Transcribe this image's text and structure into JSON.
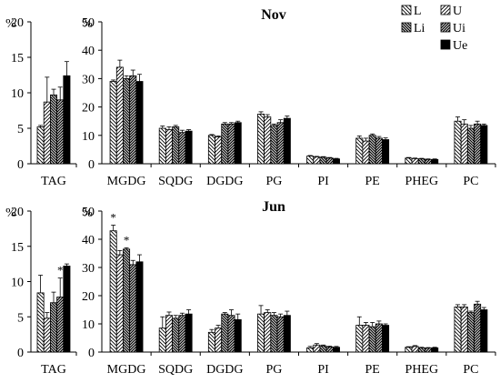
{
  "figure": {
    "legend": [
      {
        "label": "L",
        "pattern": "hatch-back"
      },
      {
        "label": "U",
        "pattern": "hatch-fwd"
      },
      {
        "label": "Li",
        "pattern": "hatch-back-dense"
      },
      {
        "label": "Ui",
        "pattern": "hatch-fwd-dense"
      },
      {
        "label": "Ue",
        "pattern": "solid-black"
      }
    ],
    "legend_placement": "top-right"
  },
  "chart_data": [
    {
      "type": "bar",
      "panel": "Nov-TAG",
      "title": "",
      "ylabel": "%",
      "ylim": [
        0,
        20
      ],
      "yticks": [
        0,
        5,
        10,
        15,
        20
      ],
      "categories": [
        "TAG"
      ],
      "series": [
        {
          "name": "L",
          "values": [
            5.2
          ],
          "errors": [
            0.2
          ]
        },
        {
          "name": "U",
          "values": [
            8.7
          ],
          "errors": [
            3.5
          ]
        },
        {
          "name": "Li",
          "values": [
            9.7
          ],
          "errors": [
            0.8
          ]
        },
        {
          "name": "Ui",
          "values": [
            9.0
          ],
          "errors": [
            1.8
          ]
        },
        {
          "name": "Ue",
          "values": [
            12.4
          ],
          "errors": [
            2.0
          ]
        }
      ],
      "annotations": []
    },
    {
      "type": "bar",
      "panel": "Nov-main",
      "title": "Nov",
      "ylabel": "%",
      "ylim": [
        0,
        50
      ],
      "yticks": [
        0,
        10,
        20,
        30,
        40,
        50
      ],
      "categories": [
        "MGDG",
        "SQDG",
        "DGDG",
        "PG",
        "PI",
        "PE",
        "PHEG",
        "PC"
      ],
      "series": [
        {
          "name": "L",
          "values": [
            29.0,
            12.5,
            10.0,
            17.5,
            2.7,
            9.0,
            2.0,
            15.0
          ],
          "errors": [
            0.5,
            0.8,
            0.3,
            0.8,
            0.2,
            0.8,
            0.2,
            1.5
          ]
        },
        {
          "name": "U",
          "values": [
            34.0,
            12.0,
            9.5,
            16.5,
            2.4,
            8.0,
            1.8,
            14.0
          ],
          "errors": [
            2.5,
            1.0,
            0.3,
            0.8,
            0.2,
            1.0,
            0.2,
            1.5
          ]
        },
        {
          "name": "Li",
          "values": [
            30.0,
            13.0,
            14.0,
            13.5,
            2.3,
            10.0,
            1.7,
            12.5
          ],
          "errors": [
            1.0,
            0.5,
            0.5,
            0.5,
            0.2,
            0.5,
            0.2,
            1.0
          ]
        },
        {
          "name": "Ui",
          "values": [
            31.0,
            11.0,
            14.0,
            14.5,
            2.0,
            9.0,
            1.5,
            14.0
          ],
          "errors": [
            2.0,
            0.8,
            0.5,
            1.0,
            0.2,
            0.6,
            0.2,
            1.0
          ]
        },
        {
          "name": "Ue",
          "values": [
            29.0,
            11.5,
            14.5,
            16.0,
            1.7,
            8.5,
            1.5,
            13.5
          ],
          "errors": [
            2.5,
            0.5,
            0.5,
            0.8,
            0.2,
            0.6,
            0.2,
            0.5
          ]
        }
      ],
      "annotations": []
    },
    {
      "type": "bar",
      "panel": "Jun-TAG",
      "title": "",
      "ylabel": "%",
      "ylim": [
        0,
        20
      ],
      "yticks": [
        0,
        5,
        10,
        15,
        20
      ],
      "categories": [
        "TAG"
      ],
      "series": [
        {
          "name": "L",
          "values": [
            8.4
          ],
          "errors": [
            2.5
          ]
        },
        {
          "name": "U",
          "values": [
            4.8
          ],
          "errors": [
            0.8
          ]
        },
        {
          "name": "Li",
          "values": [
            7.0
          ],
          "errors": [
            1.5
          ]
        },
        {
          "name": "Ui",
          "values": [
            7.8
          ],
          "errors": [
            2.7
          ]
        },
        {
          "name": "Ue",
          "values": [
            12.2
          ],
          "errors": [
            0.3
          ]
        }
      ],
      "annotations": [
        {
          "category": "TAG",
          "series": "Ui",
          "text": "*"
        }
      ]
    },
    {
      "type": "bar",
      "panel": "Jun-main",
      "title": "Jun",
      "ylabel": "%",
      "ylim": [
        0,
        50
      ],
      "yticks": [
        0,
        10,
        20,
        30,
        40,
        50
      ],
      "categories": [
        "MGDG",
        "SQDG",
        "DGDG",
        "PG",
        "PI",
        "PE",
        "PHEG",
        "PC"
      ],
      "series": [
        {
          "name": "L",
          "values": [
            43.0,
            8.5,
            7.0,
            13.5,
            1.5,
            9.5,
            1.7,
            16.0
          ],
          "errors": [
            2.0,
            4.0,
            1.0,
            3.0,
            0.5,
            3.0,
            0.2,
            0.8
          ]
        },
        {
          "name": "U",
          "values": [
            34.5,
            13.0,
            8.5,
            14.0,
            2.5,
            9.5,
            2.0,
            16.0
          ],
          "errors": [
            1.5,
            1.2,
            1.0,
            1.0,
            0.5,
            1.0,
            0.3,
            0.8
          ]
        },
        {
          "name": "Li",
          "values": [
            36.5,
            12.0,
            13.5,
            13.0,
            2.2,
            9.0,
            1.5,
            14.0
          ],
          "errors": [
            0.5,
            1.0,
            0.5,
            1.0,
            0.3,
            1.5,
            0.2,
            0.5
          ]
        },
        {
          "name": "Ui",
          "values": [
            31.0,
            13.0,
            13.0,
            12.5,
            1.8,
            10.0,
            1.4,
            17.0
          ],
          "errors": [
            1.5,
            0.8,
            2.0,
            1.0,
            0.3,
            1.0,
            0.2,
            1.0
          ]
        },
        {
          "name": "Ue",
          "values": [
            32.0,
            13.5,
            11.5,
            13.0,
            1.7,
            9.5,
            1.5,
            15.0
          ],
          "errors": [
            2.5,
            1.5,
            2.0,
            1.5,
            0.3,
            0.5,
            0.2,
            0.8
          ]
        }
      ],
      "annotations": [
        {
          "category": "MGDG",
          "series": "L",
          "text": "*"
        },
        {
          "category": "MGDG",
          "series": "Li",
          "text": "*"
        }
      ]
    }
  ]
}
